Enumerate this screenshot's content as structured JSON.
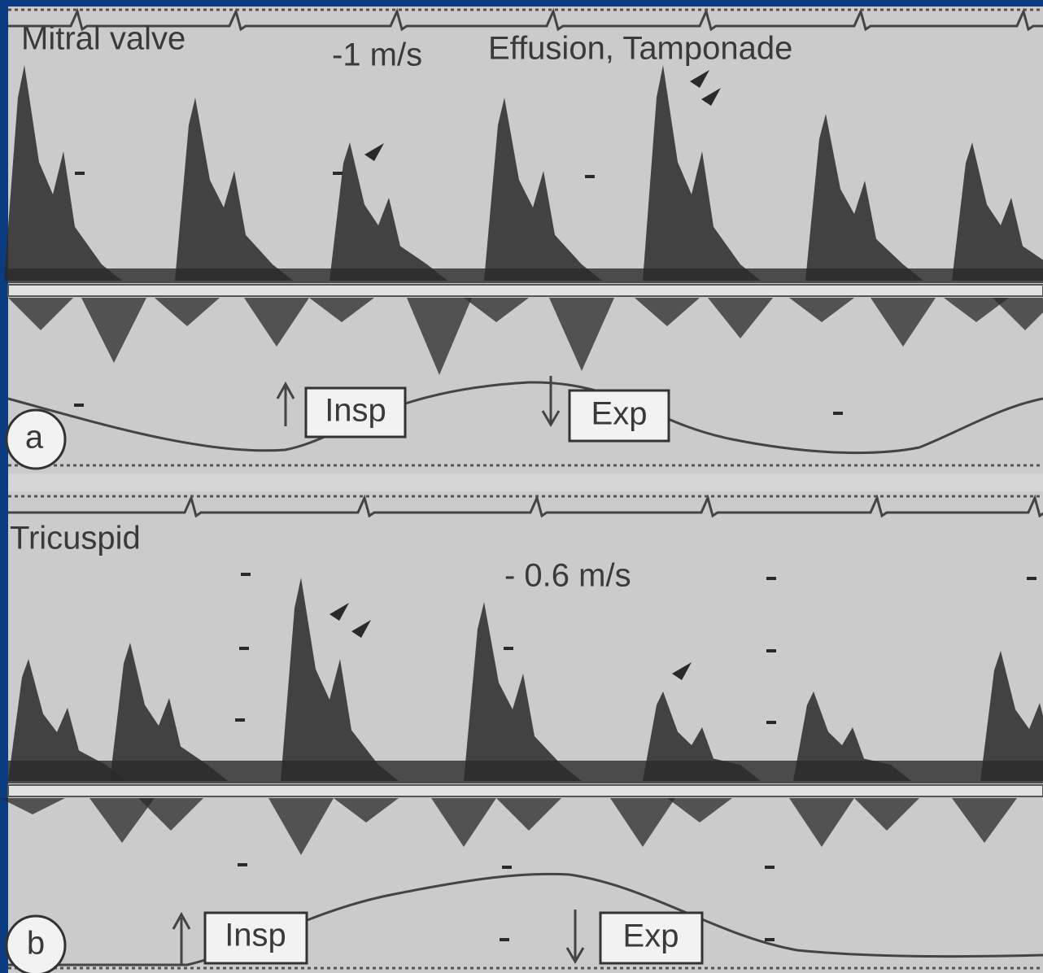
{
  "panel_a": {
    "label": "a",
    "title": "Mitral valve",
    "scale": "-1 m/s",
    "condition": "Effusion, Tamponade",
    "insp": "Insp",
    "exp": "Exp"
  },
  "panel_b": {
    "label": "b",
    "title": "Tricuspid",
    "scale": "- 0.6 m/s",
    "insp": "Insp",
    "exp": "Exp"
  }
}
